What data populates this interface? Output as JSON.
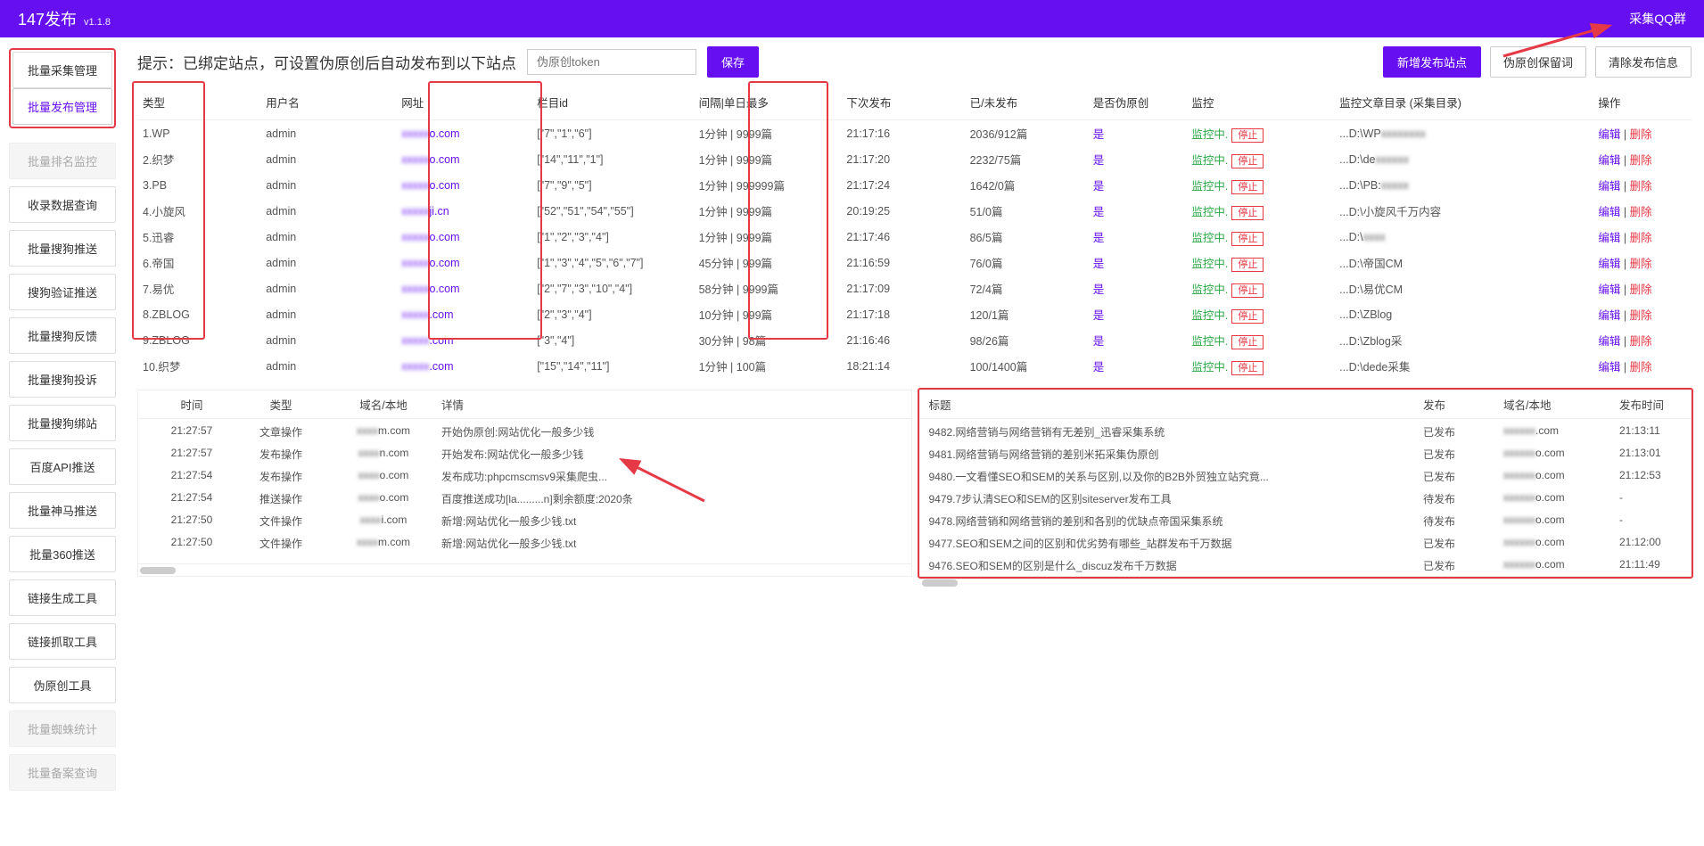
{
  "header": {
    "title": "147发布",
    "version": "v1.1.8",
    "qq": "采集QQ群"
  },
  "sidebar": {
    "group1": [
      {
        "label": "批量采集管理",
        "cls": "sidebar-item"
      },
      {
        "label": "批量发布管理",
        "cls": "sidebar-item active"
      }
    ],
    "items": [
      {
        "label": "批量排名监控",
        "cls": "sidebar-item disabled"
      },
      {
        "label": "收录数据查询",
        "cls": "sidebar-item"
      },
      {
        "label": "批量搜狗推送",
        "cls": "sidebar-item"
      },
      {
        "label": "搜狗验证推送",
        "cls": "sidebar-item"
      },
      {
        "label": "批量搜狗反馈",
        "cls": "sidebar-item"
      },
      {
        "label": "批量搜狗投诉",
        "cls": "sidebar-item"
      },
      {
        "label": "批量搜狗绑站",
        "cls": "sidebar-item"
      },
      {
        "label": "百度API推送",
        "cls": "sidebar-item"
      },
      {
        "label": "批量神马推送",
        "cls": "sidebar-item"
      },
      {
        "label": "批量360推送",
        "cls": "sidebar-item"
      },
      {
        "label": "链接生成工具",
        "cls": "sidebar-item"
      },
      {
        "label": "链接抓取工具",
        "cls": "sidebar-item"
      },
      {
        "label": "伪原创工具",
        "cls": "sidebar-item"
      },
      {
        "label": "批量蜘蛛统计",
        "cls": "sidebar-item disabled"
      },
      {
        "label": "批量备案查询",
        "cls": "sidebar-item disabled"
      }
    ]
  },
  "topbar": {
    "hint": "提示：已绑定站点，可设置伪原创后自动发布到以下站点",
    "token_placeholder": "伪原创token",
    "save": "保存",
    "btn_add": "新增发布站点",
    "btn_keep": "伪原创保留词",
    "btn_clear": "清除发布信息"
  },
  "table": {
    "headers": [
      "类型",
      "用户名",
      "网址",
      "栏目id",
      "间隔|单日最多",
      "下次发布",
      "已/未发布",
      "是否伪原创",
      "监控",
      "监控文章目录 (采集目录)",
      "操作"
    ],
    "monitor_text": "监控中.",
    "stop_text": "停止",
    "edit": "编辑",
    "del": "删除",
    "rows": [
      {
        "type": "1.WP",
        "user": "admin",
        "url_suffix": "o.com",
        "cat": "[\"7\",\"1\",\"6\"]",
        "interval": "1分钟 | 9999篇",
        "next": "21:17:16",
        "pub": "2036/912篇",
        "fake": "是",
        "dir": "...D:\\WP",
        "dir_blur": "xxxxxxxx"
      },
      {
        "type": "2.织梦",
        "user": "admin",
        "url_suffix": "o.com",
        "cat": "[\"14\",\"11\",\"1\"]",
        "interval": "1分钟 | 9999篇",
        "next": "21:17:20",
        "pub": "2232/75篇",
        "fake": "是",
        "dir": "...D:\\de",
        "dir_blur": "xxxxxx"
      },
      {
        "type": "3.PB",
        "user": "admin",
        "url_suffix": "o.com",
        "cat": "[\"7\",\"9\",\"5\"]",
        "interval": "1分钟 | 999999篇",
        "next": "21:17:24",
        "pub": "1642/0篇",
        "fake": "是",
        "dir": "...D:\\PB:",
        "dir_blur": "xxxxx"
      },
      {
        "type": "4.小旋风",
        "user": "admin",
        "url_suffix": "ji.cn",
        "cat": "[\"52\",\"51\",\"54\",\"55\"]",
        "interval": "1分钟 | 9999篇",
        "next": "20:19:25",
        "pub": "51/0篇",
        "fake": "是",
        "dir": "...D:\\小旋风千万内容",
        "dir_blur": ""
      },
      {
        "type": "5.迅睿",
        "user": "admin",
        "url_suffix": "o.com",
        "cat": "[\"1\",\"2\",\"3\",\"4\"]",
        "interval": "1分钟 | 9999篇",
        "next": "21:17:46",
        "pub": "86/5篇",
        "fake": "是",
        "dir": "...D:\\",
        "dir_blur": "xxxx"
      },
      {
        "type": "6.帝国",
        "user": "admin",
        "url_suffix": "o.com",
        "cat": "[\"1\",\"3\",\"4\",\"5\",\"6\",\"7\"]",
        "interval": "45分钟 | 999篇",
        "next": "21:16:59",
        "pub": "76/0篇",
        "fake": "是",
        "dir": "...D:\\帝国CM",
        "dir_blur": ""
      },
      {
        "type": "7.易优",
        "user": "admin",
        "url_suffix": "o.com",
        "cat": "[\"2\",\"7\",\"3\",\"10\",\"4\"]",
        "interval": "58分钟 | 9999篇",
        "next": "21:17:09",
        "pub": "72/4篇",
        "fake": "是",
        "dir": "...D:\\易优CM",
        "dir_blur": ""
      },
      {
        "type": "8.ZBLOG",
        "user": "admin",
        "url_suffix": ".com",
        "cat": "[\"2\",\"3\",\"4\"]",
        "interval": "10分钟 | 999篇",
        "next": "21:17:18",
        "pub": "120/1篇",
        "fake": "是",
        "dir": "...D:\\ZBlog",
        "dir_blur": ""
      },
      {
        "type": "9.ZBLOG",
        "user": "admin",
        "url_suffix": ".com",
        "cat": "[\"3\",\"4\"]",
        "interval": "30分钟 | 98篇",
        "next": "21:16:46",
        "pub": "98/26篇",
        "fake": "是",
        "dir": "...D:\\Zblog采",
        "dir_blur": ""
      },
      {
        "type": "10.织梦",
        "user": "admin",
        "url_suffix": ".com",
        "cat": "[\"15\",\"14\",\"11\"]",
        "interval": "1分钟 | 100篇",
        "next": "18:21:14",
        "pub": "100/1400篇",
        "fake": "是",
        "dir": "...D:\\dede采集",
        "dir_blur": ""
      }
    ]
  },
  "log_panel": {
    "headers": [
      "时间",
      "类型",
      "域名/本地",
      "详情"
    ],
    "rows": [
      {
        "t": "21:27:57",
        "type": "文章操作",
        "dom": "m.com",
        "detail": "开始伪原创:网站优化一般多少钱"
      },
      {
        "t": "21:27:57",
        "type": "发布操作",
        "dom": "n.com",
        "detail": "开始发布:网站优化一般多少钱"
      },
      {
        "t": "21:27:54",
        "type": "发布操作",
        "dom": "o.com",
        "detail": "发布成功:phpcmscmsv9采集爬虫..."
      },
      {
        "t": "21:27:54",
        "type": "推送操作",
        "dom": "o.com",
        "detail": "百度推送成功[la.........n]剩余额度:2020条"
      },
      {
        "t": "21:27:50",
        "type": "文件操作",
        "dom": "i.com",
        "detail": "新增:网站优化一般多少钱.txt"
      },
      {
        "t": "21:27:50",
        "type": "文件操作",
        "dom": "m.com",
        "detail": "新增:网站优化一般多少钱.txt"
      }
    ]
  },
  "pub_panel": {
    "headers": [
      "标题",
      "发布",
      "域名/本地",
      "发布时间"
    ],
    "rows": [
      {
        "title": "9482.网络营销与网络营销有无差别_迅睿采集系统",
        "status": "已发布",
        "dom": ".com",
        "time": "21:13:11"
      },
      {
        "title": "9481.网络营销与网络营销的差别米拓采集伪原创",
        "status": "已发布",
        "dom": "o.com",
        "time": "21:13:01"
      },
      {
        "title": "9480.一文看懂SEO和SEM的关系与区别,以及你的B2B外贸独立站究竟...",
        "status": "已发布",
        "dom": "o.com",
        "time": "21:12:53"
      },
      {
        "title": "9479.7步认清SEO和SEM的区别siteserver发布工具",
        "status": "待发布",
        "dom": "o.com",
        "time": "-"
      },
      {
        "title": "9478.网络营销和网络营销的差别和各别的优缺点帝国采集系统",
        "status": "待发布",
        "dom": "o.com",
        "time": "-"
      },
      {
        "title": "9477.SEO和SEM之间的区别和优劣势有哪些_站群发布千万数据",
        "status": "已发布",
        "dom": "o.com",
        "time": "21:12:00"
      },
      {
        "title": "9476.SEO和SEM的区别是什么_discuz发布千万数据",
        "status": "已发布",
        "dom": "o.com",
        "time": "21:11:49"
      }
    ]
  }
}
